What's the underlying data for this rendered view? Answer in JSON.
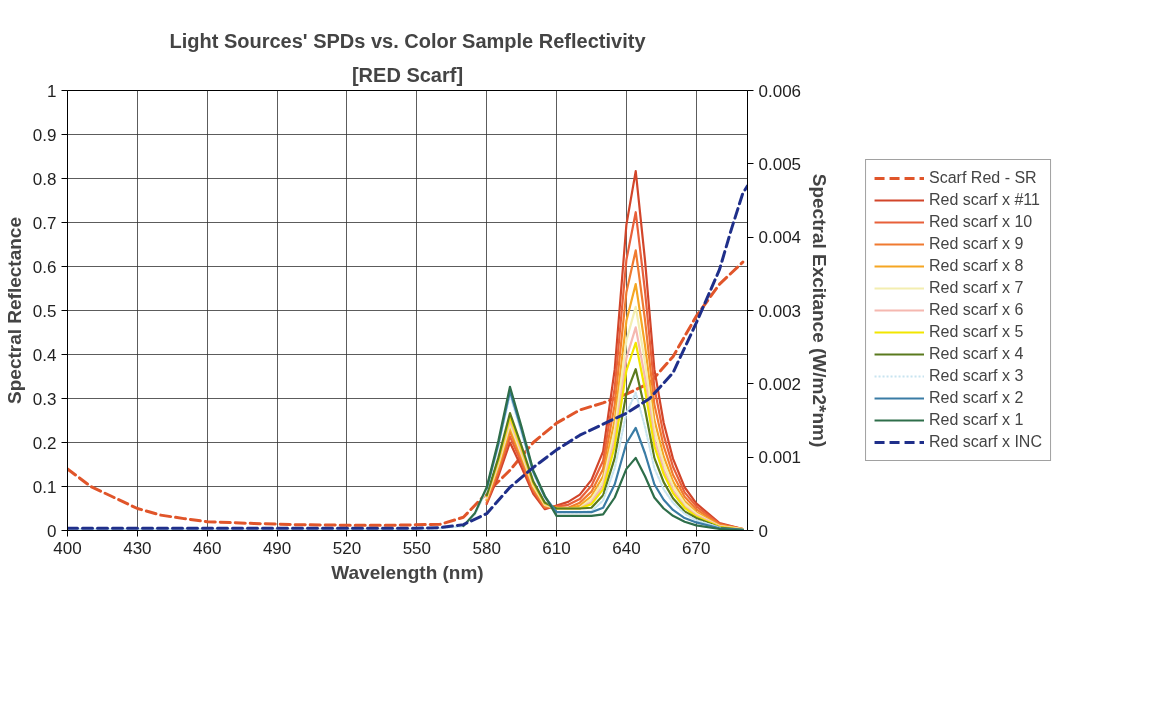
{
  "chart_data": {
    "type": "line",
    "title": "Light Sources' SPDs vs. Color Sample Reflectivity",
    "subtitle": "[RED Scarf]",
    "xlabel": "Wavelength (nm)",
    "ylabel": "Spectral Reflectance",
    "y2label": "Spectral Excitance (W/m2*nm)",
    "x": [
      400,
      550,
      560,
      570,
      575,
      580,
      585,
      590,
      595,
      600,
      605,
      610,
      615,
      620,
      625,
      630,
      635,
      640,
      644,
      648,
      652,
      656,
      660,
      665,
      670,
      680,
      690
    ],
    "xlim": [
      400,
      692
    ],
    "xticks": [
      400,
      430,
      460,
      490,
      520,
      550,
      580,
      610,
      640,
      670
    ],
    "ylim": [
      0,
      1
    ],
    "yticks": [
      0,
      0.1,
      0.2,
      0.3,
      0.4,
      0.5,
      0.6,
      0.7,
      0.8,
      0.9,
      1
    ],
    "y2lim": [
      0,
      0.006
    ],
    "y2ticks": [
      0,
      0.001,
      0.002,
      0.003,
      0.004,
      0.005,
      0.006
    ],
    "grid": true,
    "legend": "right",
    "marker": "none",
    "series": [
      {
        "name": "Scarf Red - SR",
        "color": "#e0552a",
        "line_style": "dashed",
        "x": [
          400,
          410,
          420,
          430,
          440,
          450,
          460,
          480,
          500,
          520,
          540,
          560,
          570,
          580,
          590,
          600,
          610,
          620,
          630,
          640,
          650,
          660,
          670,
          680,
          690
        ],
        "values": [
          0.14,
          0.1,
          0.075,
          0.05,
          0.035,
          0.027,
          0.02,
          0.016,
          0.013,
          0.012,
          0.012,
          0.014,
          0.03,
          0.085,
          0.137,
          0.2,
          0.244,
          0.274,
          0.29,
          0.31,
          0.335,
          0.395,
          0.487,
          0.56,
          0.61
        ]
      },
      {
        "name": "Red scarf x #11",
        "color": "#d2452a",
        "axis": "y2",
        "values": [
          null,
          null,
          null,
          null,
          null,
          0.00036,
          0.00074,
          0.0012,
          0.00086,
          0.0005,
          0.00029,
          0.00034,
          0.00039,
          0.00049,
          0.00069,
          0.00108,
          0.0022,
          0.00417,
          0.0049,
          0.00368,
          0.0022,
          0.00147,
          0.00098,
          0.00059,
          0.00037,
          0.0001,
          2e-05
        ]
      },
      {
        "name": "Red scarf x 10",
        "color": "#e8603a",
        "axis": "y2",
        "values": [
          null,
          null,
          null,
          null,
          null,
          0.00038,
          0.00079,
          0.00128,
          0.00092,
          0.00054,
          0.00031,
          0.00033,
          0.00035,
          0.00043,
          0.00061,
          0.00095,
          0.00195,
          0.00369,
          0.00434,
          0.00326,
          0.00195,
          0.0013,
          0.00087,
          0.00052,
          0.00033,
          9e-05,
          2e-05
        ]
      },
      {
        "name": "Red scarf x 9",
        "color": "#f07a30",
        "axis": "y2",
        "values": [
          null,
          null,
          null,
          null,
          null,
          0.00041,
          0.00084,
          0.00135,
          0.00097,
          0.00057,
          0.00032,
          0.00032,
          0.00031,
          0.00038,
          0.00053,
          0.00084,
          0.00172,
          0.00325,
          0.00382,
          0.00287,
          0.00172,
          0.00115,
          0.00076,
          0.00046,
          0.00029,
          8e-05,
          2e-05
        ]
      },
      {
        "name": "Red scarf x 8",
        "color": "#f5a623",
        "axis": "y2",
        "values": [
          null,
          null,
          null,
          null,
          null,
          0.00042,
          0.00087,
          0.0014,
          0.00101,
          0.00059,
          0.00034,
          0.00031,
          0.0003,
          0.00034,
          0.00047,
          0.00074,
          0.00151,
          0.00286,
          0.00336,
          0.00252,
          0.00151,
          0.00101,
          0.00067,
          0.0004,
          0.00025,
          7e-05,
          2e-05
        ]
      },
      {
        "name": "Red scarf x 7",
        "color": "#f3eeb0",
        "axis": "y2",
        "values": [
          null,
          null,
          null,
          null,
          null,
          0.00044,
          0.0009,
          0.00145,
          0.00104,
          0.00061,
          0.00035,
          0.0003,
          0.0003,
          0.00031,
          0.00043,
          0.00067,
          0.00137,
          0.00259,
          0.00305,
          0.00229,
          0.00137,
          0.00092,
          0.00061,
          0.00037,
          0.00023,
          6e-05,
          2e-05
        ]
      },
      {
        "name": "Red scarf x 6",
        "color": "#f5b8b0",
        "axis": "y2",
        "values": [
          null,
          null,
          null,
          null,
          null,
          0.00045,
          0.00093,
          0.0015,
          0.00108,
          0.00063,
          0.00036,
          0.0003,
          0.0003,
          0.0003,
          0.00039,
          0.00061,
          0.00125,
          0.00235,
          0.00277,
          0.00208,
          0.00125,
          0.00083,
          0.00055,
          0.00033,
          0.00021,
          6e-05,
          1e-05
        ]
      },
      {
        "name": "Red scarf x 5",
        "color": "#f2e600",
        "axis": "y2",
        "values": [
          null,
          null,
          null,
          null,
          null,
          0.00047,
          0.00096,
          0.00155,
          0.00112,
          0.00065,
          0.00037,
          0.0003,
          0.0003,
          0.0003,
          0.00036,
          0.00056,
          0.00115,
          0.00218,
          0.00256,
          0.00192,
          0.00115,
          0.00077,
          0.00051,
          0.00031,
          0.00019,
          5e-05,
          1e-05
        ]
      },
      {
        "name": "Red scarf x 4",
        "color": "#5a7a1e",
        "axis": "y2",
        "values": [
          null,
          null,
          null,
          null,
          null,
          0.00048,
          0.00099,
          0.0016,
          0.00115,
          0.00067,
          0.00038,
          0.0003,
          0.0003,
          0.0003,
          0.00031,
          0.00048,
          0.00099,
          0.00187,
          0.0022,
          0.00165,
          0.00099,
          0.00066,
          0.00044,
          0.00026,
          0.00017,
          4e-05,
          1e-05
        ]
      },
      {
        "name": "Red scarf x 3",
        "color": "#c8e4f0",
        "axis": "y2",
        "line_style": "dotted",
        "values": [
          2e-05,
          2e-05,
          3e-05,
          6e-05,
          0.00022,
          0.00056,
          0.00115,
          0.00185,
          0.00133,
          0.00078,
          0.00044,
          0.00025,
          0.00025,
          0.00025,
          0.00026,
          0.00041,
          0.00085,
          0.0016,
          0.00188,
          0.00141,
          0.00085,
          0.00056,
          0.00038,
          0.00023,
          0.00014,
          4e-05,
          null
        ]
      },
      {
        "name": "Red scarf x 2",
        "color": "#3a7ca5",
        "axis": "y2",
        "values": [
          null,
          null,
          null,
          null,
          null,
          0.00057,
          0.00118,
          0.0019,
          0.00137,
          0.0008,
          0.00046,
          0.00025,
          0.00025,
          0.00025,
          0.00025,
          0.00031,
          0.00063,
          0.00119,
          0.0014,
          0.00105,
          0.00063,
          0.00042,
          0.00028,
          0.00017,
          0.00011,
          3e-05,
          1e-05
        ]
      },
      {
        "name": "Red scarf x 1",
        "color": "#2e6e4a",
        "axis": "y2",
        "values": [
          null,
          null,
          null,
          6e-05,
          0.00024,
          0.00059,
          0.00122,
          0.00196,
          0.00141,
          0.00082,
          0.00047,
          0.0002,
          0.0002,
          0.0002,
          0.0002,
          0.00022,
          0.00045,
          0.00084,
          0.00099,
          0.00074,
          0.00045,
          0.0003,
          0.0002,
          0.00012,
          7e-05,
          2e-05,
          0.0
        ]
      },
      {
        "name": "Red scarf x INC",
        "color": "#1f2f8a",
        "axis": "y2",
        "line_style": "dashed",
        "x": [
          400,
          450,
          500,
          550,
          560,
          570,
          580,
          590,
          600,
          610,
          620,
          630,
          640,
          650,
          660,
          670,
          680,
          685,
          690,
          692
        ],
        "values": [
          3e-05,
          3e-05,
          3e-05,
          3e-05,
          4e-05,
          8e-05,
          0.00023,
          0.00059,
          0.00086,
          0.0011,
          0.0013,
          0.00145,
          0.0016,
          0.0018,
          0.00215,
          0.00283,
          0.00356,
          0.0041,
          0.0046,
          0.0047
        ]
      }
    ]
  }
}
